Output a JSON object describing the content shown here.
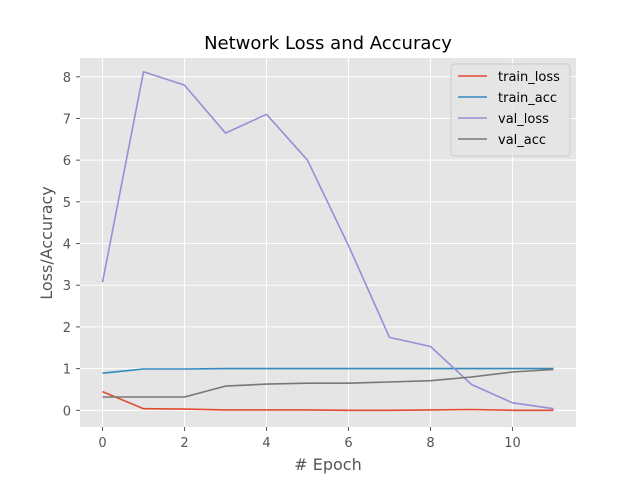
{
  "chart_data": {
    "type": "line",
    "title": "Network Loss and Accuracy",
    "xlabel": "# Epoch",
    "ylabel": "Loss/Accuracy",
    "xlim": [
      -0.55,
      11.55
    ],
    "ylim": [
      -0.4,
      8.45
    ],
    "xticks": [
      0,
      2,
      4,
      6,
      8,
      10
    ],
    "yticks": [
      0,
      1,
      2,
      3,
      4,
      5,
      6,
      7,
      8
    ],
    "grid": true,
    "legend_position": "top-right",
    "x": [
      0,
      1,
      2,
      3,
      4,
      5,
      6,
      7,
      8,
      9,
      10,
      11
    ],
    "series": [
      {
        "name": "train_loss",
        "color": "#E24A33",
        "values": [
          0.45,
          0.04,
          0.03,
          0.01,
          0.01,
          0.01,
          0.0,
          0.0,
          0.01,
          0.02,
          0.0,
          0.0
        ]
      },
      {
        "name": "train_acc",
        "color": "#348ABD",
        "values": [
          0.89,
          0.99,
          0.99,
          1.0,
          1.0,
          1.0,
          1.0,
          1.0,
          1.0,
          1.0,
          1.0,
          1.0
        ]
      },
      {
        "name": "val_loss",
        "color": "#988ED5",
        "values": [
          3.07,
          8.12,
          7.8,
          6.65,
          7.1,
          6.0,
          3.95,
          1.75,
          1.53,
          0.62,
          0.18,
          0.04
        ]
      },
      {
        "name": "val_acc",
        "color": "#777777",
        "values": [
          0.32,
          0.32,
          0.32,
          0.58,
          0.63,
          0.65,
          0.65,
          0.68,
          0.71,
          0.8,
          0.92,
          0.98
        ]
      }
    ]
  }
}
